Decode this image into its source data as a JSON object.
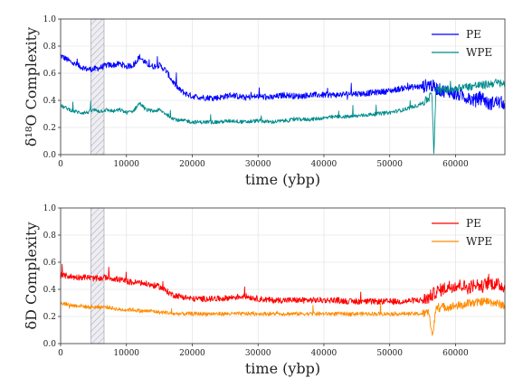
{
  "chart_data": [
    {
      "type": "line",
      "xlabel": "time (ybp)",
      "ylabel": "δ¹⁸O Complexity",
      "xlim": [
        0,
        67500
      ],
      "ylim": [
        0,
        1.0
      ],
      "xticks": [
        "0",
        "10000",
        "20000",
        "30000",
        "40000",
        "50000",
        "60000"
      ],
      "yticks": [
        "0.0",
        "0.2",
        "0.4",
        "0.6",
        "0.8",
        "1.0"
      ],
      "grid": true,
      "legend_position": "top-right",
      "highlight_band": [
        4600,
        6600
      ],
      "series": [
        {
          "name": "PE",
          "color": "#0000ff",
          "x": [
            0,
            1000,
            2000,
            3000,
            4000,
            5000,
            6000,
            7000,
            8000,
            9000,
            10000,
            11000,
            12000,
            13000,
            14000,
            15000,
            16000,
            17000,
            18000,
            19000,
            20000,
            22000,
            24000,
            26000,
            28000,
            30000,
            32000,
            34000,
            36000,
            38000,
            40000,
            42000,
            44000,
            46000,
            48000,
            50000,
            52000,
            54000,
            55000,
            56000,
            57000,
            58000,
            59000,
            60000,
            61000,
            62000,
            63000,
            64000,
            65000,
            66000,
            67500
          ],
          "y": [
            0.73,
            0.7,
            0.67,
            0.65,
            0.63,
            0.63,
            0.64,
            0.66,
            0.66,
            0.67,
            0.65,
            0.66,
            0.72,
            0.67,
            0.65,
            0.66,
            0.62,
            0.54,
            0.48,
            0.45,
            0.43,
            0.42,
            0.42,
            0.44,
            0.42,
            0.43,
            0.42,
            0.44,
            0.43,
            0.44,
            0.44,
            0.44,
            0.45,
            0.45,
            0.46,
            0.47,
            0.49,
            0.5,
            0.5,
            0.52,
            0.49,
            0.47,
            0.47,
            0.44,
            0.44,
            0.41,
            0.4,
            0.43,
            0.37,
            0.39,
            0.38
          ]
        },
        {
          "name": "WPE",
          "color": "#008b8b",
          "x": [
            0,
            1000,
            2000,
            3000,
            4000,
            5000,
            6000,
            7000,
            8000,
            9000,
            10000,
            11000,
            12000,
            13000,
            14000,
            15000,
            16000,
            17000,
            18000,
            19000,
            20000,
            22000,
            24000,
            26000,
            28000,
            30000,
            32000,
            34000,
            36000,
            38000,
            40000,
            42000,
            44000,
            46000,
            48000,
            50000,
            52000,
            54000,
            55000,
            56000,
            56400,
            56700,
            57000,
            58000,
            59000,
            60000,
            61000,
            62000,
            63000,
            64000,
            65000,
            66000,
            67500
          ],
          "y": [
            0.36,
            0.34,
            0.32,
            0.31,
            0.31,
            0.33,
            0.32,
            0.33,
            0.32,
            0.33,
            0.31,
            0.32,
            0.38,
            0.33,
            0.32,
            0.33,
            0.3,
            0.27,
            0.25,
            0.25,
            0.24,
            0.24,
            0.24,
            0.25,
            0.24,
            0.25,
            0.24,
            0.25,
            0.26,
            0.26,
            0.27,
            0.28,
            0.28,
            0.29,
            0.3,
            0.31,
            0.33,
            0.36,
            0.38,
            0.42,
            0.45,
            0.0,
            0.47,
            0.48,
            0.48,
            0.49,
            0.5,
            0.5,
            0.51,
            0.51,
            0.52,
            0.53,
            0.52
          ]
        }
      ]
    },
    {
      "type": "line",
      "xlabel": "time (ybp)",
      "ylabel": "δD Complexity",
      "xlim": [
        0,
        67500
      ],
      "ylim": [
        0,
        1.0
      ],
      "xticks": [
        "0",
        "10000",
        "20000",
        "30000",
        "40000",
        "50000",
        "60000"
      ],
      "yticks": [
        "0.0",
        "0.2",
        "0.4",
        "0.6",
        "0.8",
        "1.0"
      ],
      "grid": true,
      "legend_position": "top-right",
      "highlight_band": [
        4600,
        6600
      ],
      "series": [
        {
          "name": "PE",
          "color": "#ff0000",
          "x": [
            0,
            1000,
            2000,
            3000,
            4000,
            5000,
            6000,
            7000,
            8000,
            9000,
            10000,
            11000,
            12000,
            13000,
            14000,
            15000,
            16000,
            17000,
            18000,
            19000,
            20000,
            22000,
            24000,
            26000,
            28000,
            30000,
            32000,
            34000,
            36000,
            38000,
            40000,
            42000,
            44000,
            46000,
            48000,
            50000,
            52000,
            54000,
            55000,
            56000,
            57000,
            58000,
            59000,
            60000,
            61000,
            62000,
            63000,
            64000,
            65000,
            66000,
            67500
          ],
          "y": [
            0.5,
            0.5,
            0.49,
            0.49,
            0.49,
            0.48,
            0.48,
            0.49,
            0.48,
            0.47,
            0.46,
            0.45,
            0.45,
            0.44,
            0.43,
            0.42,
            0.39,
            0.36,
            0.35,
            0.34,
            0.33,
            0.33,
            0.33,
            0.34,
            0.35,
            0.33,
            0.32,
            0.32,
            0.32,
            0.32,
            0.32,
            0.32,
            0.31,
            0.31,
            0.31,
            0.31,
            0.31,
            0.32,
            0.32,
            0.34,
            0.38,
            0.4,
            0.42,
            0.43,
            0.43,
            0.41,
            0.44,
            0.42,
            0.45,
            0.44,
            0.42
          ]
        },
        {
          "name": "WPE",
          "color": "#ff8c00",
          "x": [
            0,
            1000,
            2000,
            3000,
            4000,
            5000,
            6000,
            7000,
            8000,
            9000,
            10000,
            11000,
            12000,
            13000,
            14000,
            15000,
            16000,
            17000,
            18000,
            19000,
            20000,
            22000,
            24000,
            26000,
            28000,
            30000,
            32000,
            34000,
            36000,
            38000,
            40000,
            42000,
            44000,
            46000,
            48000,
            50000,
            52000,
            54000,
            55000,
            56000,
            56500,
            57000,
            58000,
            59000,
            60000,
            61000,
            62000,
            63000,
            64000,
            65000,
            66000,
            67500
          ],
          "y": [
            0.3,
            0.29,
            0.28,
            0.28,
            0.27,
            0.27,
            0.27,
            0.27,
            0.26,
            0.25,
            0.25,
            0.25,
            0.24,
            0.24,
            0.24,
            0.23,
            0.23,
            0.22,
            0.22,
            0.22,
            0.22,
            0.22,
            0.22,
            0.22,
            0.22,
            0.22,
            0.22,
            0.22,
            0.22,
            0.22,
            0.22,
            0.22,
            0.22,
            0.22,
            0.22,
            0.22,
            0.22,
            0.22,
            0.22,
            0.23,
            0.05,
            0.25,
            0.27,
            0.27,
            0.28,
            0.28,
            0.3,
            0.3,
            0.31,
            0.31,
            0.3,
            0.28
          ]
        }
      ]
    }
  ]
}
